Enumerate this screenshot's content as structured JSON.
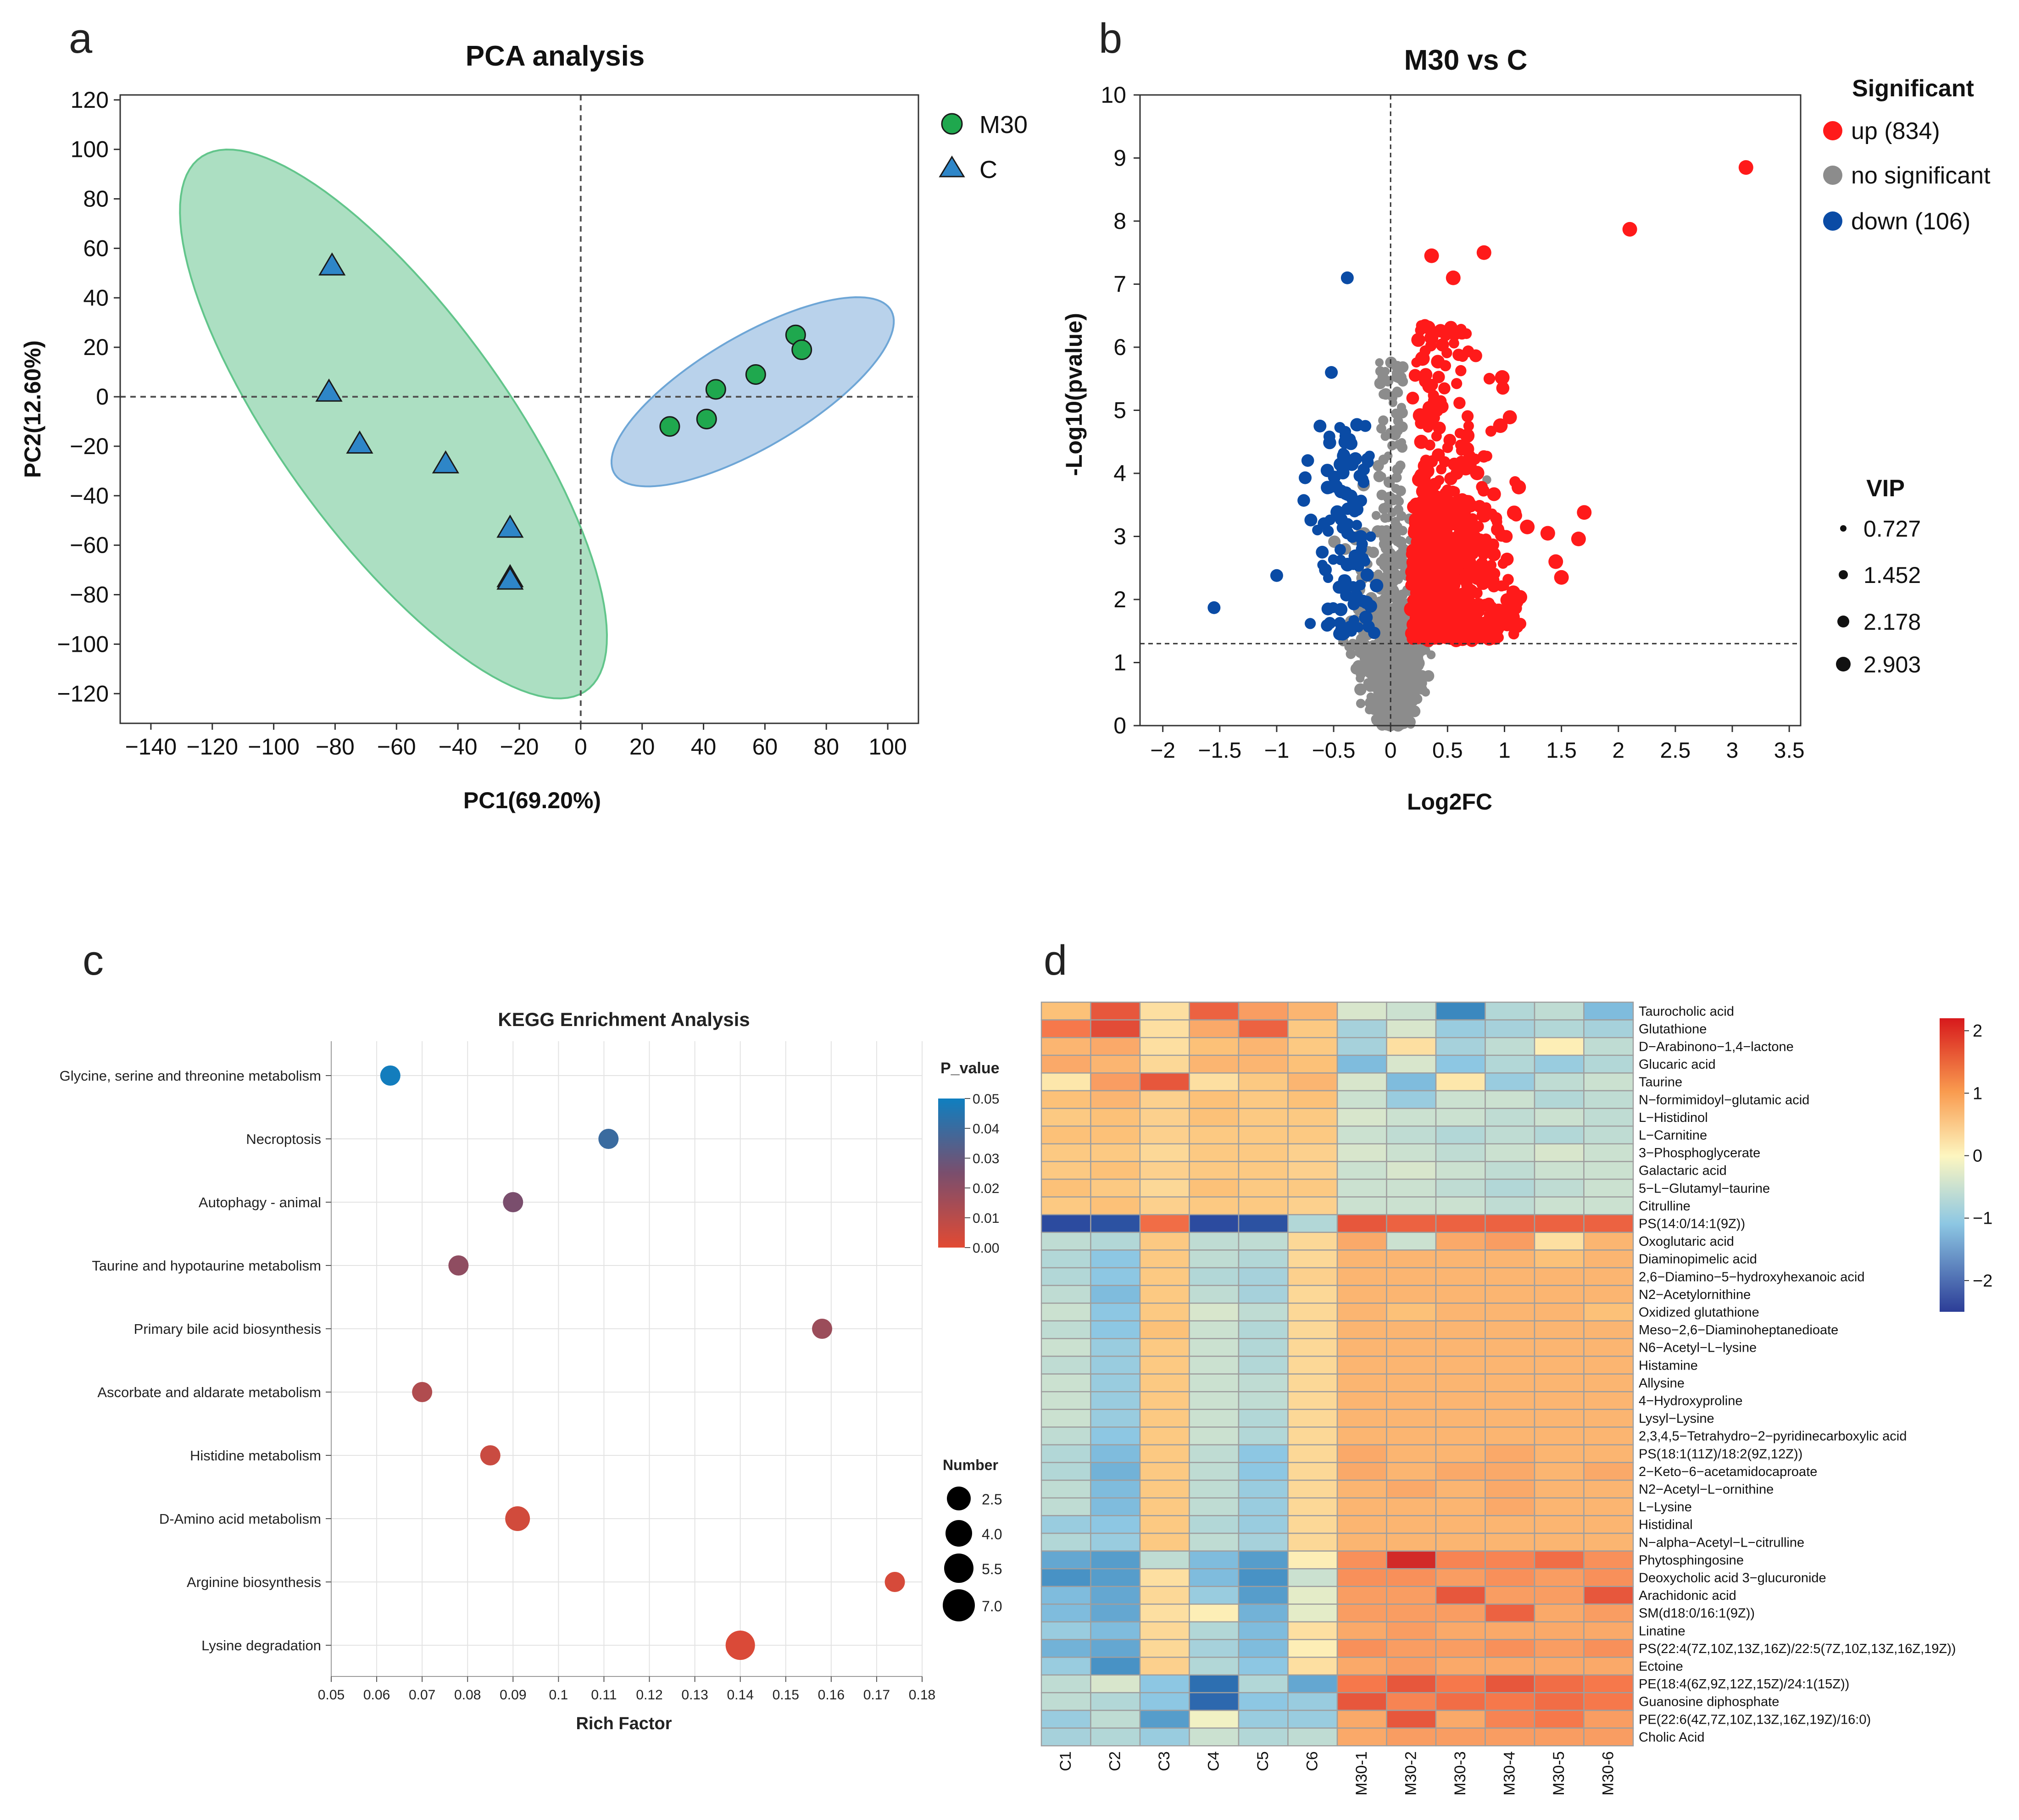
{
  "panels": {
    "a": "a",
    "b": "b",
    "c": "c",
    "d": "d"
  },
  "colors": {
    "m30": "#1fa84e",
    "c_group": "#2e86c8",
    "ellipse_green": "#9ad8b5",
    "ellipse_blue": "#a9c8e6",
    "up": "#ff1a1a",
    "ns": "#8c8c8c",
    "down": "#0a4ba5"
  },
  "chart_data": [
    {
      "id": "pca",
      "type": "scatter",
      "title": "PCA analysis",
      "xlabel": "PC1(69.20%)",
      "ylabel": "PC2(12.60%)",
      "xlim": [
        -150,
        110
      ],
      "ylim": [
        -132,
        122
      ],
      "xticks": [
        -140,
        -120,
        -100,
        -80,
        -60,
        -40,
        -20,
        0,
        20,
        40,
        60,
        80,
        100
      ],
      "yticks": [
        120,
        100,
        80,
        60,
        40,
        20,
        0,
        -20,
        -40,
        -60,
        -80,
        -100,
        -120
      ],
      "tick_labels_x": [
        "−140",
        "−120",
        "−100",
        "−80",
        "−60",
        "−40",
        "−20",
        "0",
        "20",
        "40",
        "60",
        "80",
        "100"
      ],
      "tick_labels_y": [
        "120",
        "100",
        "80",
        "60",
        "40",
        "20",
        "0",
        "−20",
        "−40",
        "−60",
        "−80",
        "−100",
        "−120"
      ],
      "series": [
        {
          "name": "M30",
          "marker": "circle",
          "points": [
            [
              29,
              -12
            ],
            [
              41,
              -9
            ],
            [
              44,
              3
            ],
            [
              57,
              9
            ],
            [
              70,
              25
            ],
            [
              72,
              19
            ]
          ]
        },
        {
          "name": "C",
          "marker": "triangle",
          "points": [
            [
              -81,
              53
            ],
            [
              -82,
              2
            ],
            [
              -72,
              -19
            ],
            [
              -44,
              -27
            ],
            [
              -23,
              -53
            ],
            [
              -23,
              -73
            ],
            [
              -23,
              -74
            ]
          ]
        }
      ],
      "ellipses": [
        {
          "group": "C",
          "cx": -61,
          "cy": -11,
          "major_radius": 125,
          "minor_radius": 39,
          "angle_deg": -61
        },
        {
          "group": "M30",
          "cx": 56,
          "cy": 2,
          "major_radius": 56,
          "minor_radius": 21,
          "angle_deg": 38
        }
      ],
      "legend": [
        "M30",
        "C"
      ]
    },
    {
      "id": "volcano",
      "type": "scatter",
      "title": "M30 vs C",
      "xlabel": "Log2FC",
      "ylabel": "-Log10(pvalue)",
      "xlim": [
        -2.2,
        3.6
      ],
      "ylim": [
        0,
        10
      ],
      "xticks": [
        -2,
        -1.5,
        -1,
        -0.5,
        0,
        0.5,
        1,
        1.5,
        2,
        2.5,
        3,
        3.5
      ],
      "yticks": [
        0,
        1,
        2,
        3,
        4,
        5,
        6,
        7,
        8,
        9,
        10
      ],
      "tick_labels_x": [
        "−2",
        "−1.5",
        "−1",
        "−0.5",
        "0",
        "0.5",
        "1",
        "1.5",
        "2",
        "2.5",
        "3",
        "3.5"
      ],
      "tick_labels_y": [
        "0",
        "1",
        "2",
        "3",
        "4",
        "5",
        "6",
        "7",
        "8",
        "9",
        "10"
      ],
      "threshold_y": 1.3,
      "threshold_x": 0,
      "legend_title": "Significant",
      "legend": [
        "up (834)",
        "no significant",
        "down (106)"
      ],
      "size_legend_title": "VIP",
      "size_legend": [
        "0.727",
        "1.452",
        "2.178",
        "2.903"
      ],
      "highlight_points": {
        "up": [
          [
            3.12,
            8.85
          ],
          [
            2.1,
            7.87
          ],
          [
            0.82,
            7.5
          ],
          [
            0.36,
            7.45
          ],
          [
            0.55,
            7.1
          ],
          [
            1.7,
            3.38
          ],
          [
            1.65,
            2.96
          ],
          [
            1.45,
            2.6
          ],
          [
            1.5,
            2.35
          ],
          [
            0.98,
            5.52
          ],
          [
            1.2,
            3.15
          ],
          [
            1.38,
            3.05
          ],
          [
            1.07,
            1.72
          ]
        ],
        "down": [
          [
            -1.55,
            1.87
          ],
          [
            -1.0,
            2.38
          ],
          [
            -0.38,
            7.1
          ],
          [
            -0.52,
            5.6
          ],
          [
            -0.75,
            3.93
          ],
          [
            -0.7,
            3.26
          ],
          [
            -0.55,
            1.85
          ],
          [
            -0.62,
            4.75
          ],
          [
            -0.6,
            2.75
          ],
          [
            -0.42,
            1.45
          ]
        ]
      },
      "cloud_note": "Dense cloud of ~940 significant and many non-significant features rendered procedurally"
    },
    {
      "id": "kegg",
      "type": "scatter",
      "title": "KEGG Enrichment Analysis",
      "xlabel": "Rich Factor",
      "xlim": [
        0.05,
        0.18
      ],
      "xticks": [
        0.05,
        0.06,
        0.07,
        0.08,
        0.09,
        0.1,
        0.11,
        0.12,
        0.13,
        0.14,
        0.15,
        0.16,
        0.17,
        0.18
      ],
      "tick_labels_x": [
        "0.05",
        "0.06",
        "0.07",
        "0.08",
        "0.09",
        "0.1",
        "0.11",
        "0.12",
        "0.13",
        "0.14",
        "0.15",
        "0.16",
        "0.17",
        "0.18"
      ],
      "categories": [
        "Glycine, serine and threonine metabolism",
        "Necroptosis",
        "Autophagy - animal",
        "Taurine and hypotaurine metabolism",
        "Primary bile acid biosynthesis",
        "Ascorbate and aldarate metabolism",
        "Histidine metabolism",
        "D-Amino acid metabolism",
        "Arginine biosynthesis",
        "Lysine degradation"
      ],
      "rich_factor": [
        0.063,
        0.111,
        0.09,
        0.078,
        0.158,
        0.07,
        0.085,
        0.091,
        0.174,
        0.14
      ],
      "p_value": [
        0.049,
        0.04,
        0.025,
        0.02,
        0.017,
        0.012,
        0.006,
        0.004,
        0.003,
        0.002
      ],
      "number": [
        3,
        3,
        3,
        3,
        3,
        3,
        3,
        5,
        3,
        7
      ],
      "color_legend_title": "P_value",
      "color_legend_ticks": [
        "0.05",
        "0.04",
        "0.03",
        "0.02",
        "0.01",
        "0.00"
      ],
      "size_legend_title": "Number",
      "size_legend": [
        "2.5",
        "4.0",
        "5.5",
        "7.0"
      ],
      "color_low": "#e24a33",
      "color_mid": "#7a4e6d",
      "color_high": "#0f7fc0"
    },
    {
      "id": "heatmap",
      "type": "heatmap",
      "columns": [
        "C1",
        "C2",
        "C3",
        "C4",
        "C5",
        "C6",
        "M30-1",
        "M30-2",
        "M30-3",
        "M30-4",
        "M30-5",
        "M30-6"
      ],
      "rows": [
        "Taurocholic acid",
        "Glutathione",
        "D−Arabinono−1,4−lactone",
        "Glucaric acid",
        "Taurine",
        "N−formimidoyl−glutamic acid",
        "L−Histidinol",
        "L−Carnitine",
        "3−Phosphoglycerate",
        "Galactaric acid",
        "5−L−Glutamyl−taurine",
        "Citrulline",
        "PS(14:0/14:1(9Z))",
        "Oxoglutaric acid",
        "Diaminopimelic acid",
        "2,6−Diamino−5−hydroxyhexanoic acid",
        "N2−Acetylornithine",
        "Oxidized glutathione",
        "Meso−2,6−Diaminoheptanedioate",
        "N6−Acetyl−L−lysine",
        "Histamine",
        "Allysine",
        "4−Hydroxyproline",
        "Lysyl−Lysine",
        "2,3,4,5−Tetrahydro−2−pyridinecarboxylic acid",
        "PS(18:1(11Z)/18:2(9Z,12Z))",
        "2−Keto−6−acetamidocaproate",
        "N2−Acetyl−L−ornithine",
        "L−Lysine",
        "Histidinal",
        "N−alpha−Acetyl−L−citrulline",
        "Phytosphingosine",
        "Deoxycholic acid 3−glucuronide",
        "Arachidonic acid",
        "SM(d18:0/16:1(9Z))",
        "Linatine",
        "PS(22:4(7Z,10Z,13Z,16Z)/22:5(7Z,10Z,13Z,16Z,19Z))",
        "Ectoine",
        "PE(18:4(6Z,9Z,12Z,15Z)/24:1(15Z))",
        "Guanosine diphosphate",
        "PE(22:6(4Z,7Z,10Z,13Z,16Z,19Z)/16:0)",
        "Cholic Acid"
      ],
      "values": [
        [
          0.7,
          1.6,
          0.3,
          1.5,
          1.0,
          0.8,
          -0.3,
          -0.4,
          -1.5,
          -0.6,
          -0.5,
          -1.0
        ],
        [
          1.3,
          1.7,
          0.3,
          0.9,
          1.5,
          0.6,
          -0.7,
          -0.3,
          -0.8,
          -0.7,
          -0.6,
          -0.7
        ],
        [
          0.8,
          0.9,
          0.3,
          0.7,
          0.8,
          0.6,
          -0.7,
          0.3,
          -0.7,
          -0.5,
          0.1,
          -0.5
        ],
        [
          0.9,
          0.8,
          0.4,
          0.8,
          0.8,
          0.7,
          -1.0,
          -0.3,
          -0.9,
          -0.6,
          -0.8,
          -0.6
        ],
        [
          0.2,
          1.0,
          1.6,
          0.3,
          0.6,
          0.8,
          -0.3,
          -1.0,
          0.2,
          -0.8,
          -0.5,
          -0.4
        ],
        [
          0.7,
          0.8,
          0.5,
          0.7,
          0.6,
          0.7,
          -0.4,
          -0.8,
          -0.4,
          -0.4,
          -0.6,
          -0.5
        ],
        [
          0.6,
          0.7,
          0.5,
          0.7,
          0.6,
          0.6,
          -0.3,
          -0.4,
          -0.4,
          -0.5,
          -0.4,
          -0.5
        ],
        [
          0.7,
          0.7,
          0.5,
          0.6,
          0.6,
          0.6,
          -0.4,
          -0.5,
          -0.6,
          -0.5,
          -0.6,
          -0.5
        ],
        [
          0.6,
          0.6,
          0.4,
          0.6,
          0.6,
          0.5,
          -0.3,
          -0.4,
          -0.5,
          -0.4,
          -0.3,
          -0.4
        ],
        [
          0.6,
          0.7,
          0.5,
          0.6,
          0.6,
          0.5,
          -0.4,
          -0.3,
          -0.4,
          -0.5,
          -0.4,
          -0.4
        ],
        [
          0.7,
          0.6,
          0.4,
          0.7,
          0.6,
          0.6,
          -0.4,
          -0.4,
          -0.5,
          -0.6,
          -0.5,
          -0.4
        ],
        [
          0.6,
          0.7,
          0.5,
          0.6,
          0.6,
          0.5,
          -0.4,
          -0.4,
          -0.4,
          -0.5,
          -0.4,
          -0.4
        ],
        [
          -2.3,
          -2.2,
          1.4,
          -2.3,
          -2.2,
          -0.6,
          1.6,
          1.5,
          1.5,
          1.5,
          1.5,
          1.5
        ],
        [
          -0.5,
          -0.6,
          0.6,
          -0.5,
          -0.5,
          0.4,
          0.9,
          -0.4,
          0.9,
          1.0,
          0.3,
          0.8
        ],
        [
          -0.6,
          -0.9,
          0.6,
          -0.5,
          -0.6,
          0.4,
          0.8,
          0.8,
          0.8,
          0.8,
          0.7,
          0.8
        ],
        [
          -0.6,
          -0.9,
          0.6,
          -0.6,
          -0.7,
          0.5,
          0.8,
          0.8,
          0.8,
          0.8,
          0.8,
          0.8
        ],
        [
          -0.5,
          -1.0,
          0.6,
          -0.5,
          -0.7,
          0.4,
          0.8,
          0.8,
          0.8,
          0.8,
          0.8,
          0.8
        ],
        [
          -0.4,
          -0.9,
          0.6,
          -0.3,
          -0.5,
          0.4,
          0.8,
          0.7,
          0.8,
          0.8,
          0.8,
          0.7
        ],
        [
          -0.5,
          -0.9,
          0.7,
          -0.4,
          -0.6,
          0.4,
          0.8,
          0.8,
          0.8,
          0.8,
          0.8,
          0.8
        ],
        [
          -0.4,
          -0.8,
          0.6,
          -0.4,
          -0.6,
          0.4,
          0.8,
          0.8,
          0.8,
          0.8,
          0.8,
          0.8
        ],
        [
          -0.5,
          -0.8,
          0.6,
          -0.4,
          -0.6,
          0.4,
          0.8,
          0.8,
          0.8,
          0.8,
          0.8,
          0.8
        ],
        [
          -0.4,
          -0.8,
          0.6,
          -0.4,
          -0.5,
          0.4,
          0.8,
          0.8,
          0.8,
          0.8,
          0.8,
          0.8
        ],
        [
          -0.4,
          -0.8,
          0.6,
          -0.4,
          -0.5,
          0.4,
          0.8,
          0.8,
          0.8,
          0.8,
          0.8,
          0.8
        ],
        [
          -0.4,
          -0.8,
          0.6,
          -0.4,
          -0.6,
          0.4,
          0.8,
          0.8,
          0.8,
          0.8,
          0.8,
          0.8
        ],
        [
          -0.5,
          -0.9,
          0.6,
          -0.4,
          -0.6,
          0.4,
          0.8,
          0.8,
          0.8,
          0.8,
          0.8,
          0.8
        ],
        [
          -0.6,
          -1.0,
          0.6,
          -0.5,
          -0.9,
          0.4,
          0.9,
          0.8,
          0.8,
          0.9,
          0.8,
          0.8
        ],
        [
          -0.6,
          -1.1,
          0.6,
          -0.5,
          -0.9,
          0.4,
          0.9,
          0.8,
          0.9,
          0.9,
          0.8,
          0.9
        ],
        [
          -0.5,
          -1.0,
          0.6,
          -0.5,
          -0.8,
          0.4,
          0.8,
          0.9,
          0.8,
          0.9,
          0.8,
          0.8
        ],
        [
          -0.5,
          -1.0,
          0.6,
          -0.5,
          -0.8,
          0.4,
          0.8,
          0.8,
          0.8,
          0.9,
          0.8,
          0.8
        ],
        [
          -0.8,
          -0.9,
          0.6,
          -0.6,
          -0.8,
          0.4,
          0.8,
          0.8,
          0.8,
          0.8,
          0.8,
          0.8
        ],
        [
          -0.6,
          -0.8,
          0.6,
          -0.5,
          -0.7,
          0.4,
          0.8,
          0.8,
          0.8,
          0.8,
          0.8,
          0.8
        ],
        [
          -1.2,
          -1.3,
          -0.5,
          -1.0,
          -1.3,
          0.1,
          1.1,
          2.0,
          1.2,
          1.2,
          1.4,
          1.1
        ],
        [
          -1.4,
          -1.3,
          0.3,
          -1.0,
          -1.4,
          -0.4,
          1.1,
          1.1,
          1.0,
          1.1,
          1.0,
          1.1
        ],
        [
          -1.0,
          -1.2,
          0.4,
          -0.8,
          -1.3,
          -0.2,
          1.0,
          1.0,
          1.6,
          1.0,
          1.0,
          1.6
        ],
        [
          -1.0,
          -1.2,
          0.3,
          0.1,
          -1.1,
          -0.2,
          1.0,
          1.0,
          1.0,
          1.5,
          0.9,
          1.0
        ],
        [
          -0.8,
          -1.0,
          0.4,
          -0.6,
          -1.0,
          0.3,
          0.9,
          1.0,
          0.9,
          0.9,
          0.9,
          0.9
        ],
        [
          -1.1,
          -1.2,
          0.4,
          -0.7,
          -1.0,
          0.1,
          1.1,
          1.0,
          1.0,
          1.1,
          1.0,
          1.1
        ],
        [
          -0.8,
          -1.4,
          0.5,
          -0.6,
          -0.9,
          0.3,
          0.9,
          1.0,
          0.9,
          0.9,
          0.9,
          0.9
        ],
        [
          -0.5,
          -0.3,
          -0.9,
          -1.8,
          -0.6,
          -1.2,
          1.3,
          1.6,
          1.3,
          1.6,
          1.4,
          1.3
        ],
        [
          -0.5,
          -0.6,
          -0.9,
          -1.9,
          -0.9,
          -0.8,
          1.6,
          1.2,
          1.4,
          1.3,
          1.4,
          1.3
        ],
        [
          -0.8,
          -0.5,
          -1.3,
          -0.1,
          -0.8,
          -0.8,
          0.9,
          1.6,
          0.9,
          1.2,
          1.3,
          1.0
        ],
        [
          -0.7,
          -0.6,
          -0.8,
          -0.4,
          -0.6,
          -0.5,
          0.9,
          1.0,
          1.0,
          1.0,
          1.0,
          1.0
        ]
      ],
      "scale": [
        -2.5,
        2.2
      ],
      "colorbar_ticks": [
        "2",
        "1",
        "0",
        "−1",
        "−2"
      ]
    }
  ]
}
